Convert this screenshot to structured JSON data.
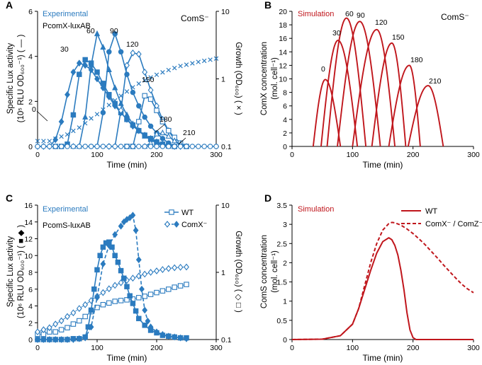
{
  "colors": {
    "blue": "#2b7bbf",
    "red": "#c0161c",
    "black": "#000000"
  },
  "chart_data": [
    {
      "id": "A",
      "type": "line",
      "panel_label": "A",
      "annotation": "Experimental",
      "annotation2": "PcomX-luxAB",
      "strain": "ComS⁻",
      "xlabel": "Time (min)",
      "ylabel_line1": "Specific Lux activity",
      "ylabel_line2": "(10⁵ RLU OD₆₀₀⁻¹) ( — )",
      "y2label": "Growth (OD₆₀₀) ( × )",
      "xlim": [
        0,
        300
      ],
      "ylim": [
        0,
        6
      ],
      "y2lim_log": [
        0.1,
        10
      ],
      "xticks": [
        0,
        100,
        200,
        300
      ],
      "yticks": [
        0,
        2,
        4,
        6
      ],
      "y2ticks": [
        0.1,
        1,
        10
      ],
      "y2ticklabels": [
        "0.1",
        "1",
        "10"
      ],
      "series": [
        {
          "name": "0",
          "marker": "diamond-filled",
          "x": [
            0,
            10,
            20,
            30,
            40,
            50,
            60,
            70,
            80,
            90,
            100,
            110,
            120,
            130,
            140,
            150,
            160,
            170,
            180,
            190,
            200,
            210,
            220,
            230
          ],
          "y": [
            0,
            0,
            0,
            0.3,
            1.1,
            2.3,
            3.3,
            3.7,
            3.6,
            3.4,
            3.0,
            2.6,
            2.2,
            1.8,
            1.5,
            1.2,
            0.9,
            0.7,
            0.5,
            0.35,
            0.2,
            0.1,
            0.05,
            0
          ]
        },
        {
          "name": "30",
          "marker": "square-filled",
          "x": [
            30,
            40,
            50,
            60,
            70,
            80,
            90,
            100,
            110,
            120,
            130,
            140,
            150,
            160,
            170,
            180,
            190,
            200,
            210,
            220,
            230
          ],
          "y": [
            0,
            0,
            0.1,
            1.4,
            3.2,
            3.85,
            3.7,
            3.3,
            2.8,
            2.3,
            1.9,
            1.5,
            1.2,
            0.95,
            0.7,
            0.5,
            0.35,
            0.2,
            0.1,
            0.05,
            0
          ]
        },
        {
          "name": "60",
          "marker": "triangle-filled",
          "x": [
            60,
            70,
            80,
            90,
            100,
            110,
            120,
            130,
            140,
            150,
            160,
            170,
            180,
            190,
            200,
            210,
            220
          ],
          "y": [
            0,
            0,
            1.3,
            3.6,
            5.0,
            4.4,
            3.4,
            2.6,
            1.9,
            1.4,
            1.0,
            0.7,
            0.45,
            0.3,
            0.15,
            0.05,
            0
          ]
        },
        {
          "name": "90",
          "marker": "circle-filled",
          "x": [
            90,
            100,
            110,
            120,
            130,
            140,
            150,
            160,
            170,
            180,
            190,
            200,
            210,
            220,
            230
          ],
          "y": [
            0,
            0,
            1.5,
            4.2,
            5.0,
            4.2,
            3.2,
            2.4,
            1.8,
            1.3,
            0.9,
            0.6,
            0.35,
            0.15,
            0
          ]
        },
        {
          "name": "120",
          "marker": "diamond-open",
          "x": [
            120,
            130,
            140,
            150,
            160,
            170,
            180,
            190,
            200,
            210,
            220,
            230,
            240
          ],
          "y": [
            0,
            0,
            1.6,
            3.6,
            4.15,
            4.1,
            3.3,
            2.5,
            1.8,
            1.2,
            0.7,
            0.3,
            0
          ]
        },
        {
          "name": "150",
          "marker": "square-open",
          "x": [
            150,
            160,
            170,
            180,
            190,
            200,
            210,
            220,
            230,
            240,
            250
          ],
          "y": [
            0,
            0,
            1.1,
            2.25,
            2.1,
            1.6,
            1.1,
            0.7,
            0.4,
            0.15,
            0
          ]
        },
        {
          "name": "180",
          "marker": "triangle-open",
          "x": [
            180,
            190,
            200,
            210,
            220,
            230,
            240,
            250
          ],
          "y": [
            0,
            0.15,
            0.55,
            0.6,
            0.45,
            0.25,
            0.1,
            0
          ]
        },
        {
          "name": "210",
          "marker": "circle-open",
          "x": [
            0,
            10,
            20,
            30,
            40,
            50,
            60,
            70,
            80,
            90,
            100,
            110,
            120,
            130,
            140,
            150,
            160,
            170,
            180,
            190,
            200,
            210,
            220,
            230,
            240,
            250,
            260,
            270,
            280,
            290,
            300
          ],
          "y": [
            0,
            0,
            0,
            0,
            0,
            0,
            0,
            0,
            0,
            0,
            0,
            0,
            0,
            0,
            0,
            0,
            0,
            0,
            0,
            0,
            0,
            0,
            0,
            0,
            0,
            0,
            0,
            0,
            0,
            0,
            0
          ]
        }
      ],
      "growth": {
        "name": "OD600",
        "marker": "x",
        "x": [
          0,
          10,
          20,
          30,
          40,
          50,
          60,
          70,
          80,
          90,
          100,
          110,
          120,
          130,
          140,
          150,
          160,
          170,
          180,
          190,
          200,
          210,
          220,
          230,
          240,
          250,
          260,
          270,
          280,
          290,
          300
        ],
        "y": [
          0.12,
          0.12,
          0.12,
          0.13,
          0.14,
          0.15,
          0.17,
          0.19,
          0.22,
          0.26,
          0.3,
          0.35,
          0.41,
          0.48,
          0.56,
          0.65,
          0.75,
          0.85,
          0.95,
          1.05,
          1.15,
          1.25,
          1.35,
          1.45,
          1.55,
          1.62,
          1.7,
          1.78,
          1.85,
          1.92,
          2.0
        ]
      },
      "label_positions_x": [
        0,
        30,
        60,
        90,
        120,
        150,
        180,
        210
      ]
    },
    {
      "id": "B",
      "type": "line",
      "panel_label": "B",
      "annotation": "Simulation",
      "strain": "ComS⁻",
      "xlabel": "Time (min)",
      "ylabel_line1": "ComX concentration",
      "ylabel_line2": "(mol. cell⁻¹)",
      "xlim": [
        0,
        300
      ],
      "ylim": [
        0,
        20
      ],
      "xticks": [
        0,
        100,
        200,
        300
      ],
      "yticks": [
        0,
        2,
        4,
        6,
        8,
        10,
        12,
        14,
        16,
        18,
        20
      ],
      "series": [
        {
          "name": "0",
          "start": 35,
          "peak_t": 55,
          "peak": 9.9,
          "end": 80
        },
        {
          "name": "30",
          "start": 48,
          "peak_t": 76,
          "peak": 15.7,
          "end": 108
        },
        {
          "name": "60",
          "start": 58,
          "peak_t": 90,
          "peak": 19.0,
          "end": 122
        },
        {
          "name": "90",
          "start": 75,
          "peak_t": 112,
          "peak": 18.5,
          "end": 146
        },
        {
          "name": "120",
          "start": 100,
          "peak_t": 140,
          "peak": 17.3,
          "end": 170
        },
        {
          "name": "150",
          "start": 132,
          "peak_t": 165,
          "peak": 15.3,
          "end": 188
        },
        {
          "name": "180",
          "start": 160,
          "peak_t": 194,
          "peak": 12.0,
          "end": 212
        },
        {
          "name": "210",
          "start": 192,
          "peak_t": 225,
          "peak": 9.0,
          "end": 250
        }
      ]
    },
    {
      "id": "C",
      "type": "line",
      "panel_label": "C",
      "annotation": "Experimental",
      "annotation2": "PcomS-luxAB",
      "xlabel": "Time (min)",
      "ylabel_line1": "Specific Lux activity",
      "ylabel_line2": "(10⁶ RLU OD₆₀₀⁻¹) ( ■ ◆ )",
      "y2label": "Growth (OD₆₀₀) ( ◇ □ )",
      "xlim": [
        0,
        300
      ],
      "ylim": [
        0,
        16
      ],
      "y2lim_log": [
        0.1,
        10
      ],
      "xticks": [
        0,
        100,
        200,
        300
      ],
      "yticks": [
        0,
        2,
        4,
        6,
        8,
        10,
        12,
        14,
        16
      ],
      "y2ticks": [
        0.1,
        1,
        10
      ],
      "y2ticklabels": [
        "0.1",
        "1",
        "10"
      ],
      "legend": [
        "WT",
        "ComX⁻"
      ],
      "series": [
        {
          "name": "WT",
          "marker": "square-filled",
          "dash": false,
          "x": [
            0,
            10,
            20,
            30,
            40,
            50,
            60,
            70,
            80,
            85,
            90,
            95,
            100,
            105,
            110,
            115,
            120,
            125,
            130,
            135,
            140,
            145,
            150,
            155,
            160,
            165,
            170,
            180,
            190,
            200,
            210,
            220,
            230,
            240,
            250
          ],
          "y": [
            0,
            0,
            0,
            0,
            0,
            0,
            0.1,
            0.1,
            0.3,
            1.5,
            3.5,
            6.0,
            8.3,
            10.0,
            11.0,
            11.5,
            11.6,
            11.0,
            10.0,
            9.2,
            8.2,
            7.3,
            6.3,
            5.2,
            4.3,
            3.4,
            2.5,
            1.7,
            1.1,
            0.8,
            0.5,
            0.4,
            0.3,
            0.2,
            0.2
          ]
        },
        {
          "name": "ComX⁻",
          "marker": "diamond-filled",
          "dash": true,
          "x": [
            0,
            10,
            20,
            30,
            40,
            50,
            60,
            70,
            80,
            90,
            100,
            110,
            120,
            130,
            140,
            145,
            150,
            155,
            160,
            165,
            170,
            175,
            180,
            185,
            190,
            200,
            210,
            220,
            230,
            240,
            250
          ],
          "y": [
            0,
            0,
            0,
            0,
            0,
            0,
            0,
            0.1,
            0.2,
            1.5,
            5.0,
            9.0,
            11.2,
            12.5,
            13.5,
            14.0,
            14.3,
            14.5,
            14.8,
            13.0,
            9.5,
            6.0,
            3.5,
            2.2,
            1.5,
            0.9,
            0.6,
            0.4,
            0.3,
            0.2,
            0.1
          ]
        }
      ],
      "growth": [
        {
          "name": "WT OD600",
          "marker": "square-open",
          "x": [
            0,
            10,
            20,
            30,
            40,
            50,
            60,
            70,
            80,
            90,
            100,
            110,
            120,
            130,
            140,
            150,
            160,
            170,
            180,
            190,
            200,
            210,
            220,
            230,
            240,
            250
          ],
          "y": [
            0.12,
            0.12,
            0.13,
            0.13,
            0.14,
            0.15,
            0.17,
            0.19,
            0.22,
            0.26,
            0.3,
            0.33,
            0.35,
            0.37,
            0.38,
            0.39,
            0.4,
            0.42,
            0.44,
            0.47,
            0.5,
            0.53,
            0.56,
            0.6,
            0.63,
            0.66
          ]
        },
        {
          "name": "ComX⁻ OD600",
          "marker": "diamond-open",
          "x": [
            0,
            10,
            20,
            30,
            40,
            50,
            60,
            70,
            80,
            90,
            100,
            110,
            120,
            130,
            140,
            150,
            160,
            170,
            180,
            190,
            200,
            210,
            220,
            230,
            240,
            250
          ],
          "y": [
            0.13,
            0.14,
            0.15,
            0.17,
            0.19,
            0.22,
            0.25,
            0.29,
            0.33,
            0.38,
            0.44,
            0.5,
            0.57,
            0.64,
            0.7,
            0.76,
            0.82,
            0.88,
            0.94,
            1.0,
            1.05,
            1.1,
            1.14,
            1.17,
            1.19,
            1.2
          ]
        }
      ]
    },
    {
      "id": "D",
      "type": "line",
      "panel_label": "D",
      "annotation": "Simulation",
      "xlabel": "Time (min)",
      "ylabel_line1": "ComS concentration",
      "ylabel_line2": "(mol. cell⁻¹)",
      "xlim": [
        0,
        300
      ],
      "ylim": [
        0,
        3.5
      ],
      "xticks": [
        0,
        100,
        200,
        300
      ],
      "yticks": [
        0,
        0.5,
        1,
        1.5,
        2,
        2.5,
        3,
        3.5
      ],
      "yticklabels": [
        "0",
        "0.5",
        "1",
        "1.5",
        "2",
        "2.5",
        "3",
        "3.5"
      ],
      "legend": [
        "WT",
        "ComX⁻ / ComZ⁻"
      ],
      "series": [
        {
          "name": "WT",
          "dash": false,
          "x": [
            0,
            50,
            80,
            100,
            110,
            120,
            130,
            140,
            150,
            160,
            165,
            170,
            175,
            180,
            185,
            190,
            195,
            200,
            205,
            300
          ],
          "y": [
            0,
            0.01,
            0.1,
            0.4,
            0.8,
            1.3,
            1.8,
            2.25,
            2.55,
            2.65,
            2.6,
            2.45,
            2.2,
            1.8,
            1.3,
            0.7,
            0.25,
            0.05,
            0,
            0
          ]
        },
        {
          "name": "ComX⁻ / ComZ⁻",
          "dash": true,
          "x": [
            0,
            50,
            80,
            100,
            110,
            120,
            130,
            140,
            150,
            160,
            165,
            170,
            180,
            190,
            200,
            210,
            220,
            230,
            240,
            250,
            260,
            270,
            280,
            290,
            300
          ],
          "y": [
            0,
            0.01,
            0.1,
            0.4,
            0.8,
            1.4,
            2.0,
            2.5,
            2.85,
            3.02,
            3.05,
            3.04,
            2.98,
            2.88,
            2.76,
            2.62,
            2.47,
            2.3,
            2.13,
            1.95,
            1.78,
            1.61,
            1.45,
            1.32,
            1.22
          ]
        }
      ]
    }
  ]
}
